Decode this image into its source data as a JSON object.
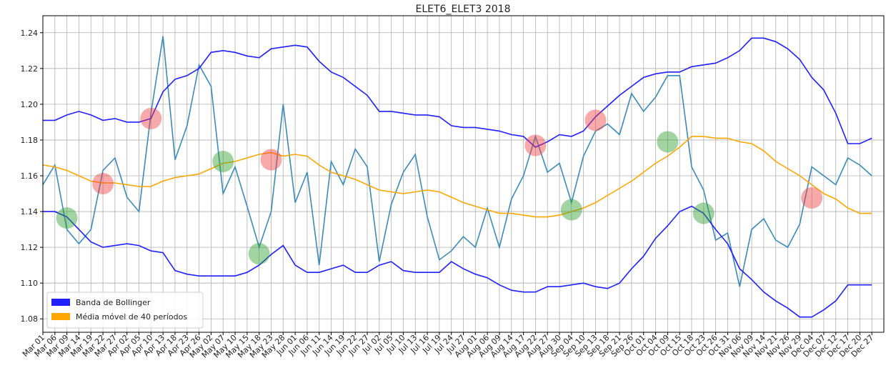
{
  "chart_data": {
    "type": "line",
    "title": "ELET6_ELET3 2018",
    "categories": [
      "Mar 01",
      "Mar 06",
      "Mar 09",
      "Mar 14",
      "Mar 19",
      "Mar 22",
      "Mar 27",
      "Apr 02",
      "Apr 05",
      "Apr 10",
      "Apr 13",
      "Apr 18",
      "Apr 23",
      "Apr 26",
      "May 02",
      "May 07",
      "May 10",
      "May 15",
      "May 18",
      "May 23",
      "May 28",
      "Jun 01",
      "Jun 06",
      "Jun 11",
      "Jun 14",
      "Jun 19",
      "Jun 22",
      "Jun 27",
      "Jul 02",
      "Jul 05",
      "Jul 10",
      "Jul 13",
      "Jul 16",
      "Jul 19",
      "Jul 24",
      "Jul 27",
      "Aug 01",
      "Aug 06",
      "Aug 09",
      "Aug 14",
      "Aug 17",
      "Aug 22",
      "Aug 27",
      "Aug 30",
      "Sep 04",
      "Sep 10",
      "Sep 13",
      "Sep 18",
      "Sep 21",
      "Sep 26",
      "Oct 01",
      "Oct 04",
      "Oct 09",
      "Oct 15",
      "Oct 18",
      "Oct 23",
      "Oct 26",
      "Oct 31",
      "Nov 06",
      "Nov 09",
      "Nov 14",
      "Nov 21",
      "Nov 26",
      "Nov 29",
      "Dec 04",
      "Dec 07",
      "Dec 12",
      "Dec 17",
      "Dec 20",
      "Dec 27"
    ],
    "series": [
      {
        "type": "line",
        "color": "#3a8bbb",
        "values": [
          1.155,
          1.166,
          1.13,
          1.122,
          1.13,
          1.163,
          1.17,
          1.148,
          1.14,
          1.195,
          1.238,
          1.169,
          1.188,
          1.222,
          1.21,
          1.15,
          1.165,
          1.143,
          1.12,
          1.14,
          1.2,
          1.145,
          1.162,
          1.11,
          1.168,
          1.155,
          1.175,
          1.165,
          1.112,
          1.144,
          1.162,
          1.172,
          1.137,
          1.113,
          1.118,
          1.126,
          1.12,
          1.142,
          1.12,
          1.147,
          1.16,
          1.182,
          1.162,
          1.167,
          1.145,
          1.171,
          1.185,
          1.189,
          1.183,
          1.206,
          1.196,
          1.204,
          1.216,
          1.216,
          1.165,
          1.152,
          1.124,
          1.128,
          1.098,
          1.13,
          1.136,
          1.124,
          1.12,
          1.133,
          1.165,
          1.16,
          1.155,
          1.17,
          1.166,
          1.16
        ]
      },
      {
        "type": "line",
        "name": "Banda de Bollinger",
        "color": "#1f1fff",
        "values": [
          1.191,
          1.191,
          1.194,
          1.196,
          1.194,
          1.191,
          1.192,
          1.19,
          1.19,
          1.192,
          1.207,
          1.214,
          1.216,
          1.22,
          1.229,
          1.23,
          1.229,
          1.227,
          1.226,
          1.231,
          1.232,
          1.233,
          1.232,
          1.224,
          1.218,
          1.215,
          1.21,
          1.205,
          1.196,
          1.196,
          1.195,
          1.194,
          1.194,
          1.193,
          1.188,
          1.187,
          1.187,
          1.186,
          1.185,
          1.183,
          1.182,
          1.176,
          1.179,
          1.183,
          1.182,
          1.185,
          1.193,
          1.199,
          1.205,
          1.21,
          1.215,
          1.217,
          1.218,
          1.218,
          1.221,
          1.222,
          1.223,
          1.226,
          1.23,
          1.237,
          1.237,
          1.235,
          1.231,
          1.225,
          1.215,
          1.208,
          1.195,
          1.178,
          1.178,
          1.181
        ]
      },
      {
        "type": "line",
        "name": "Média móvel de 40 períodos",
        "color": "orange",
        "values": [
          1.166,
          1.165,
          1.163,
          1.16,
          1.157,
          1.156,
          1.156,
          1.155,
          1.154,
          1.154,
          1.157,
          1.159,
          1.16,
          1.161,
          1.164,
          1.167,
          1.168,
          1.17,
          1.172,
          1.173,
          1.171,
          1.172,
          1.171,
          1.166,
          1.162,
          1.16,
          1.158,
          1.155,
          1.152,
          1.151,
          1.15,
          1.151,
          1.152,
          1.151,
          1.148,
          1.145,
          1.143,
          1.141,
          1.139,
          1.139,
          1.138,
          1.137,
          1.137,
          1.138,
          1.14,
          1.142,
          1.145,
          1.149,
          1.153,
          1.157,
          1.162,
          1.167,
          1.171,
          1.176,
          1.182,
          1.182,
          1.181,
          1.181,
          1.179,
          1.178,
          1.174,
          1.168,
          1.164,
          1.16,
          1.155,
          1.15,
          1.147,
          1.142,
          1.139,
          1.139
        ]
      },
      {
        "type": "line",
        "color": "#1f1fff",
        "values": [
          1.14,
          1.14,
          1.137,
          1.13,
          1.123,
          1.12,
          1.121,
          1.122,
          1.121,
          1.118,
          1.117,
          1.107,
          1.105,
          1.104,
          1.104,
          1.104,
          1.104,
          1.106,
          1.11,
          1.116,
          1.121,
          1.11,
          1.106,
          1.106,
          1.108,
          1.11,
          1.106,
          1.106,
          1.11,
          1.112,
          1.107,
          1.106,
          1.106,
          1.106,
          1.112,
          1.108,
          1.105,
          1.103,
          1.099,
          1.096,
          1.095,
          1.095,
          1.098,
          1.098,
          1.099,
          1.1,
          1.098,
          1.097,
          1.1,
          1.108,
          1.115,
          1.125,
          1.132,
          1.14,
          1.143,
          1.139,
          1.13,
          1.122,
          1.108,
          1.102,
          1.095,
          1.09,
          1.086,
          1.081,
          1.081,
          1.085,
          1.09,
          1.099,
          1.099,
          1.099
        ]
      },
      {
        "type": "scatter",
        "color": "#f04040",
        "values": [
          null,
          null,
          null,
          null,
          null,
          1.1556,
          null,
          null,
          null,
          1.192,
          null,
          null,
          null,
          null,
          null,
          null,
          null,
          null,
          null,
          1.169,
          null,
          null,
          null,
          null,
          null,
          null,
          null,
          null,
          null,
          null,
          null,
          null,
          null,
          null,
          null,
          null,
          null,
          null,
          null,
          null,
          null,
          1.177,
          null,
          null,
          null,
          null,
          1.191,
          null,
          null,
          null,
          null,
          null,
          null,
          null,
          null,
          null,
          null,
          null,
          null,
          null,
          null,
          null,
          null,
          null,
          1.1476,
          null,
          null,
          null,
          null,
          null
        ]
      },
      {
        "type": "scatter",
        "color": "#30a030",
        "values": [
          null,
          null,
          1.1364,
          null,
          null,
          null,
          null,
          null,
          null,
          null,
          null,
          null,
          null,
          null,
          null,
          1.168,
          null,
          null,
          1.1164,
          null,
          null,
          null,
          null,
          null,
          null,
          null,
          null,
          null,
          null,
          null,
          null,
          null,
          null,
          null,
          null,
          null,
          null,
          null,
          null,
          null,
          null,
          null,
          null,
          null,
          1.141,
          null,
          null,
          null,
          null,
          null,
          null,
          null,
          1.179,
          null,
          null,
          1.139,
          null,
          null,
          null,
          null,
          null,
          null,
          null,
          null,
          null,
          null,
          null,
          null,
          null,
          null
        ]
      }
    ],
    "ylim": [
      1.0725,
      1.2495
    ],
    "yticks": [
      {
        "value": 1.08,
        "label": "1.08"
      },
      {
        "value": 1.1,
        "label": "1.10"
      },
      {
        "value": 1.12,
        "label": "1.12"
      },
      {
        "value": 1.14,
        "label": "1.14"
      },
      {
        "value": 1.16,
        "label": "1.16"
      },
      {
        "value": 1.18,
        "label": "1.18"
      },
      {
        "value": 1.2,
        "label": "1.20"
      },
      {
        "value": 1.22,
        "label": "1.22"
      },
      {
        "value": 1.24,
        "label": "1.24"
      }
    ],
    "grid": true,
    "legend": "lower left"
  }
}
